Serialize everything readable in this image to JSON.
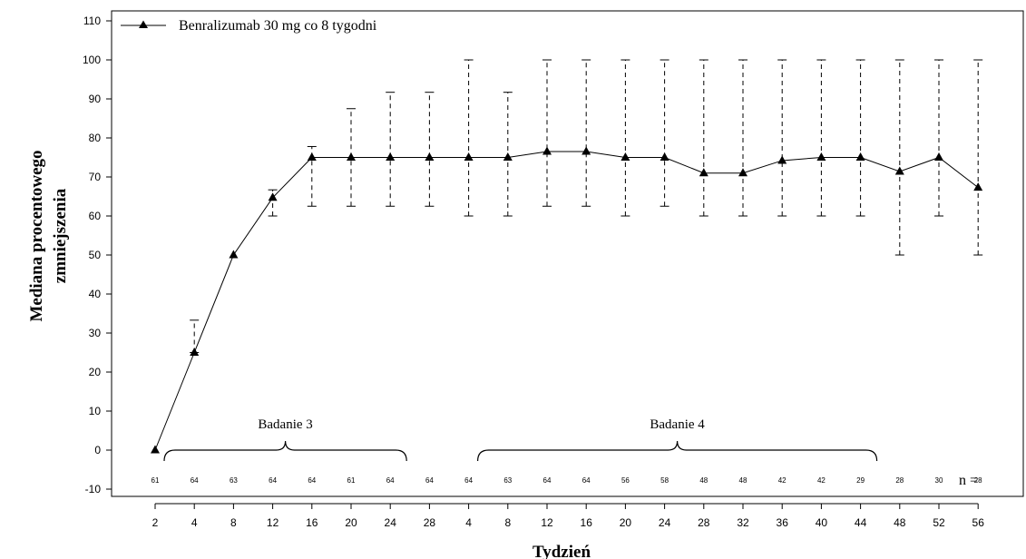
{
  "chart_data": {
    "type": "line",
    "ylabel_lines": [
      "Mediana procentowego",
      "zmniejszenia"
    ],
    "xlabel": "Tydzień",
    "ylim": [
      -14,
      112
    ],
    "yticks": [
      -10,
      0,
      10,
      20,
      30,
      40,
      50,
      60,
      70,
      80,
      90,
      100,
      110
    ],
    "grid": false,
    "legend": {
      "placement": "top-left",
      "entries": [
        "Benralizumab 30 mg co 8 tygodni"
      ]
    },
    "categories": [
      "2",
      "4",
      "8",
      "12",
      "16",
      "20",
      "24",
      "28",
      "4",
      "8",
      "12",
      "16",
      "20",
      "24",
      "28",
      "32",
      "36",
      "40",
      "44",
      "48",
      "52",
      "56"
    ],
    "series": [
      {
        "name": "Benralizumab 30 mg co 8 tygodni",
        "values": [
          0,
          25,
          50,
          64.7,
          75,
          75,
          75,
          75,
          75,
          75,
          76.5,
          76.5,
          75,
          75,
          71,
          71,
          74.2,
          75,
          75,
          71.4,
          75,
          67.3
        ],
        "error_low": [
          null,
          25,
          null,
          60,
          62.5,
          62.5,
          62.5,
          62.5,
          60,
          60,
          62.5,
          62.5,
          60,
          62.5,
          60,
          60,
          60,
          60,
          60,
          50,
          60,
          50
        ],
        "error_high": [
          null,
          33.3,
          null,
          66.7,
          77.8,
          87.5,
          91.7,
          91.7,
          100,
          91.7,
          100,
          100,
          100,
          100,
          100,
          100,
          100,
          100,
          100,
          100,
          100,
          100
        ]
      }
    ],
    "n_label": "n =",
    "n_values": [
      "61",
      "64",
      "63",
      "64",
      "64",
      "61",
      "64",
      "64",
      "64",
      "63",
      "64",
      "64",
      "56",
      "58",
      "48",
      "48",
      "42",
      "42",
      "29",
      "28",
      "30",
      "28"
    ],
    "annotations": [
      {
        "text": "Badanie 3",
        "from_index": 0,
        "to_index": 6
      },
      {
        "text": "Badanie 4",
        "from_index": 8,
        "to_index": 18
      }
    ]
  }
}
